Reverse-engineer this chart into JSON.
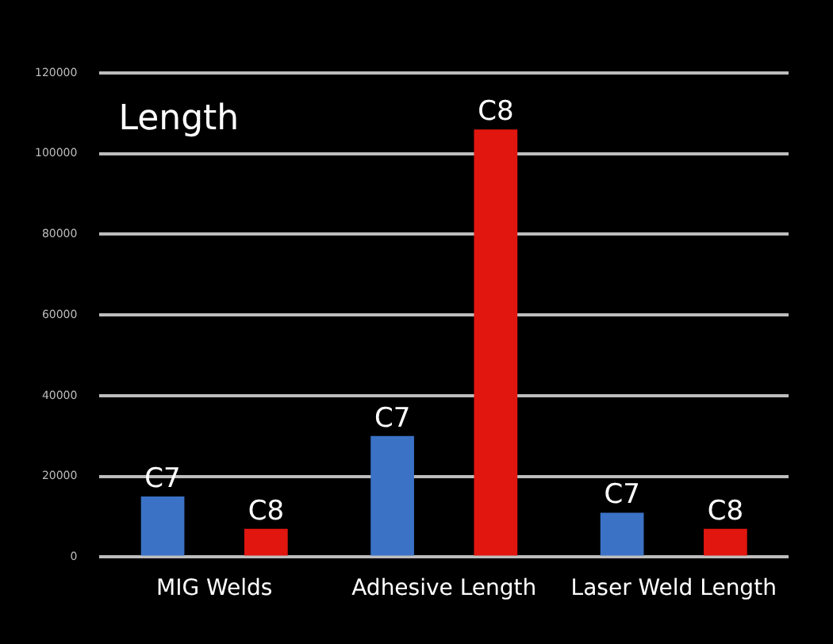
{
  "chart_data": {
    "type": "bar",
    "title": "Length",
    "categories": [
      "MIG Welds",
      "Adhesive Length",
      "Laser Weld Length"
    ],
    "series": [
      {
        "name": "C7",
        "color": "#3b72c6",
        "values": [
          15000,
          30000,
          11000
        ]
      },
      {
        "name": "C8",
        "color": "#e0160f",
        "values": [
          7000,
          106000,
          7000
        ]
      }
    ],
    "ylim": [
      0,
      120000
    ],
    "yticks": [
      0,
      20000,
      40000,
      60000,
      80000,
      100000,
      120000
    ],
    "grid": "y",
    "legend": false
  }
}
